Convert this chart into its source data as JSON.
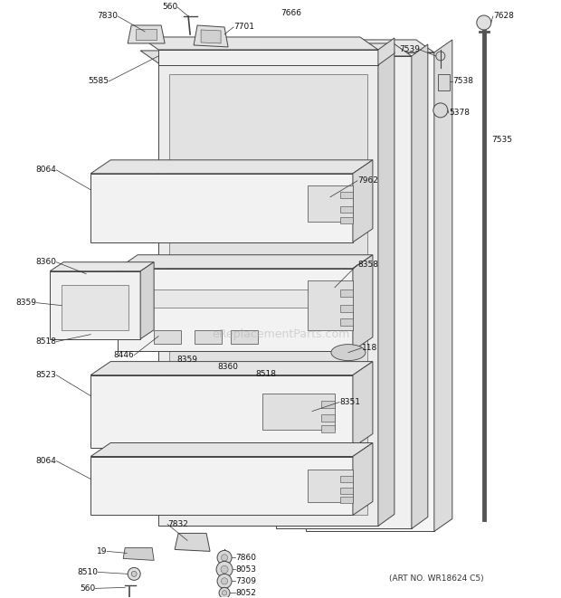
{
  "background_color": "#ffffff",
  "art_no_text": "(ART NO. WR18624 C5)",
  "watermark": "eReplacementParts.com",
  "line_color": "#444444",
  "lw": 0.7,
  "fig_w": 6.2,
  "fig_h": 6.61,
  "dpi": 100
}
